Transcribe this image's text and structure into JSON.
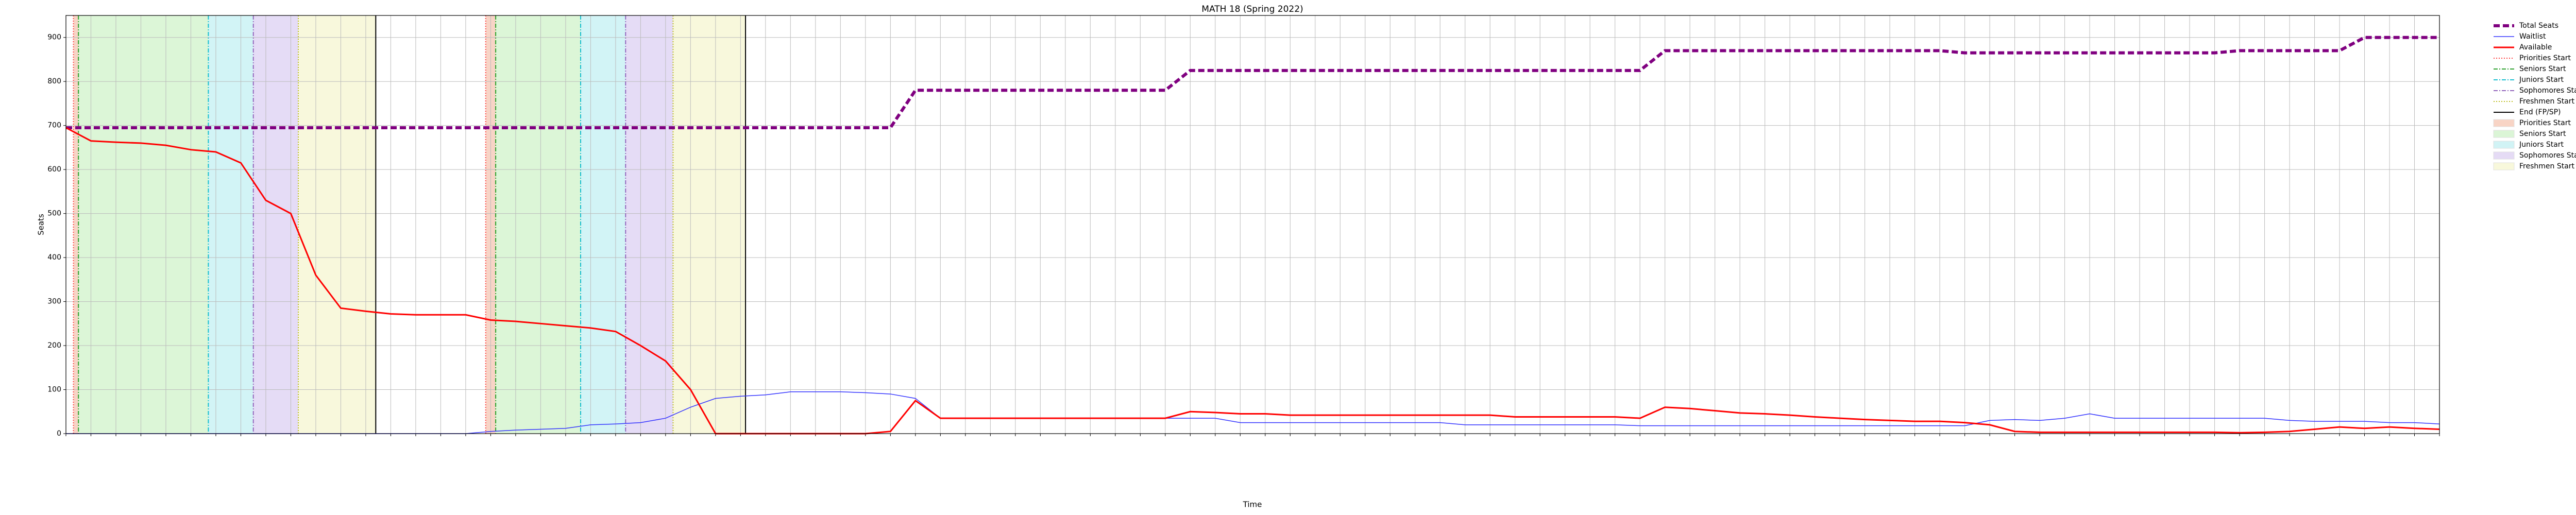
{
  "chart_data": {
    "type": "line",
    "title": "MATH 18 (Spring 2022)",
    "x_label": "Time",
    "y_label": "Seats",
    "categories": [
      null,
      null,
      null,
      null,
      null,
      null,
      null,
      null,
      null,
      null,
      null,
      null,
      null,
      null,
      null,
      null,
      null,
      null,
      null,
      null,
      null,
      null,
      null,
      null,
      null,
      null,
      null,
      null,
      null,
      null,
      null,
      null,
      null,
      null,
      null,
      null,
      null,
      null,
      null,
      null,
      null,
      null,
      null,
      null,
      null,
      null,
      null,
      null,
      null,
      null,
      null,
      null,
      null,
      null,
      null,
      null,
      null,
      null,
      null,
      null,
      null,
      null,
      null,
      null,
      null,
      null,
      null,
      null,
      null,
      null,
      null,
      null,
      null,
      null,
      null,
      null,
      null,
      null,
      null,
      null,
      null,
      null,
      null,
      null,
      null,
      null,
      null,
      null,
      null,
      null,
      null,
      null,
      null,
      null,
      null,
      null
    ],
    "ylim": [
      0,
      950
    ],
    "yticks": [
      0,
      100,
      200,
      300,
      400,
      500,
      600,
      700,
      800,
      900
    ],
    "grid": true,
    "series": [
      {
        "name": "Total Seats",
        "color": "#800080",
        "dash": "12,6",
        "width": 6,
        "values": [
          695,
          695,
          695,
          695,
          695,
          695,
          695,
          695,
          695,
          695,
          695,
          695,
          695,
          695,
          695,
          695,
          695,
          695,
          695,
          695,
          695,
          695,
          695,
          695,
          695,
          695,
          695,
          695,
          695,
          695,
          695,
          695,
          695,
          695,
          780,
          780,
          780,
          780,
          780,
          780,
          780,
          780,
          780,
          780,
          780,
          825,
          825,
          825,
          825,
          825,
          825,
          825,
          825,
          825,
          825,
          825,
          825,
          825,
          825,
          825,
          825,
          825,
          825,
          825,
          870,
          870,
          870,
          870,
          870,
          870,
          870,
          870,
          870,
          870,
          870,
          870,
          865,
          865,
          865,
          865,
          865,
          865,
          865,
          865,
          865,
          865,
          865,
          870,
          870,
          870,
          870,
          870,
          900,
          900,
          900,
          900
        ]
      },
      {
        "name": "Waitlist",
        "color": "#3333ff",
        "dash": "",
        "width": 1.5,
        "values": [
          0,
          0,
          0,
          0,
          0,
          0,
          0,
          0,
          0,
          0,
          0,
          0,
          0,
          0,
          0,
          0,
          0,
          5,
          8,
          10,
          12,
          20,
          22,
          25,
          35,
          60,
          80,
          85,
          88,
          95,
          95,
          95,
          93,
          90,
          80,
          35,
          35,
          35,
          35,
          35,
          35,
          35,
          35,
          35,
          35,
          35,
          35,
          25,
          25,
          25,
          25,
          25,
          25,
          25,
          25,
          25,
          20,
          20,
          20,
          20,
          20,
          20,
          20,
          18,
          18,
          18,
          18,
          18,
          18,
          18,
          18,
          18,
          18,
          18,
          18,
          18,
          18,
          30,
          32,
          30,
          35,
          45,
          35,
          35,
          35,
          35,
          35,
          35,
          35,
          30,
          28,
          28,
          28,
          25,
          25,
          22
        ]
      },
      {
        "name": "Available",
        "color": "#ff0000",
        "dash": "",
        "width": 3,
        "values": [
          695,
          665,
          662,
          660,
          655,
          645,
          640,
          615,
          530,
          500,
          360,
          285,
          278,
          272,
          270,
          270,
          270,
          258,
          255,
          250,
          245,
          240,
          232,
          200,
          165,
          100,
          0,
          0,
          0,
          0,
          0,
          0,
          0,
          5,
          75,
          35,
          35,
          35,
          35,
          35,
          35,
          35,
          35,
          35,
          35,
          50,
          48,
          45,
          45,
          42,
          42,
          42,
          42,
          42,
          42,
          42,
          42,
          42,
          38,
          38,
          38,
          38,
          38,
          35,
          60,
          57,
          52,
          47,
          45,
          42,
          38,
          35,
          32,
          30,
          28,
          28,
          25,
          20,
          5,
          3,
          3,
          3,
          3,
          3,
          3,
          3,
          3,
          2,
          3,
          5,
          10,
          15,
          12,
          15,
          12,
          10
        ]
      }
    ],
    "markers": [
      {
        "name": "Priorities Start",
        "color": "#ff4444",
        "dash": "2,3",
        "x": [
          0.3,
          16.8
        ]
      },
      {
        "name": "Seniors Start",
        "color": "#2ca02c",
        "dash": "8,3,2,3",
        "x": [
          0.5,
          17.2
        ]
      },
      {
        "name": "Juniors Start",
        "color": "#17becf",
        "dash": "8,3,2,3",
        "x": [
          5.7,
          20.6
        ]
      },
      {
        "name": "Sophomores Start",
        "color": "#9467bd",
        "dash": "8,3,2,3",
        "x": [
          7.5,
          22.4
        ]
      },
      {
        "name": "Freshmen Start",
        "color": "#bcbd22",
        "dash": "2,3",
        "x": [
          9.3,
          24.3
        ]
      },
      {
        "name": "End (FP/SP)",
        "color": "#000000",
        "dash": "",
        "x": [
          12.4,
          27.2
        ]
      }
    ],
    "shades": [
      {
        "name": "Priorities Start",
        "color": "#f4b8a0",
        "ranges": [
          [
            0.3,
            0.5
          ],
          [
            16.8,
            17.2
          ]
        ]
      },
      {
        "name": "Seniors Start",
        "color": "#c4f0bc",
        "ranges": [
          [
            0.5,
            5.7
          ],
          [
            17.2,
            20.6
          ]
        ]
      },
      {
        "name": "Juniors Start",
        "color": "#b4ecf0",
        "ranges": [
          [
            5.7,
            7.5
          ],
          [
            20.6,
            22.4
          ]
        ]
      },
      {
        "name": "Sophomores Start",
        "color": "#d4c4f0",
        "ranges": [
          [
            7.5,
            9.3
          ],
          [
            22.4,
            24.3
          ]
        ]
      },
      {
        "name": "Freshmen Start",
        "color": "#f4f4c4",
        "ranges": [
          [
            9.3,
            12.4
          ],
          [
            24.3,
            27.2
          ]
        ]
      }
    ]
  }
}
